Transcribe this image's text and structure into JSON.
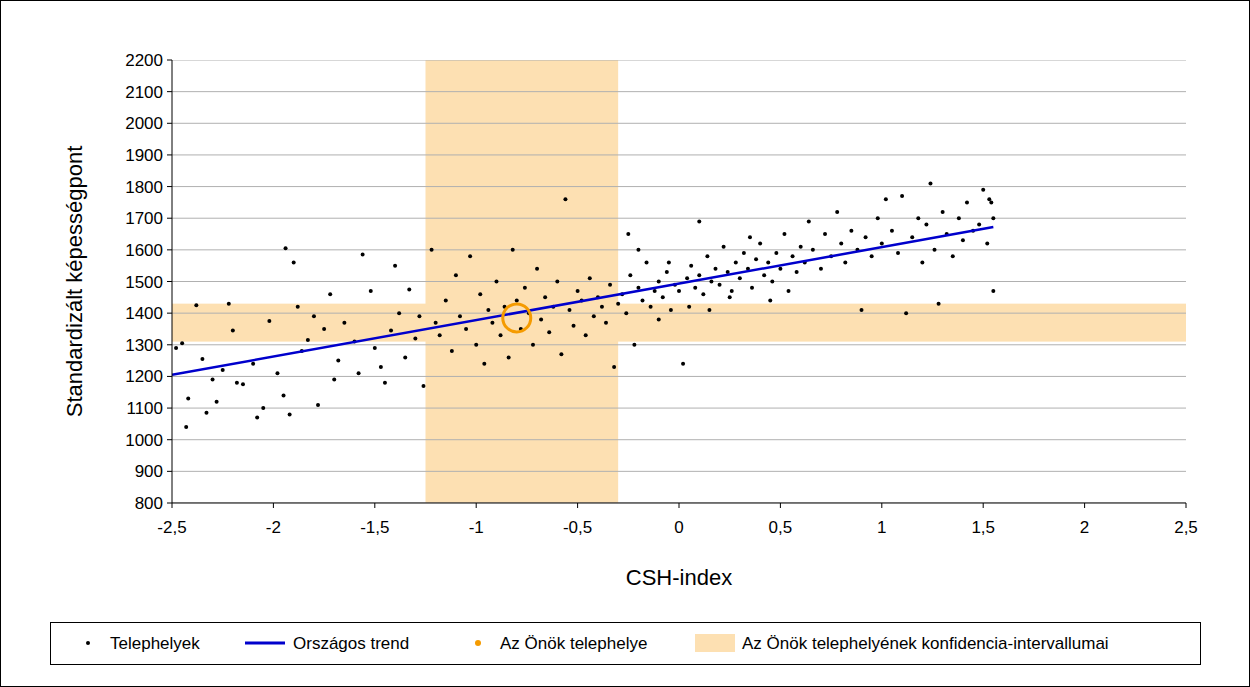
{
  "chart_data": {
    "type": "scatter",
    "x_label": "CSH-index",
    "y_label": "Standardizált képességpont",
    "xlim": [
      -2.5,
      2.5
    ],
    "ylim": [
      800,
      2200
    ],
    "xticks": [
      {
        "value": -2.5,
        "label": "-2,5"
      },
      -2,
      {
        "value": -1.5,
        "label": "-1,5"
      },
      -1,
      {
        "value": -0.5,
        "label": "-0,5"
      },
      0,
      {
        "value": 0.5,
        "label": "0,5"
      },
      1,
      {
        "value": 1.5,
        "label": "1,5"
      },
      2,
      {
        "value": 2.5,
        "label": "2,5"
      }
    ],
    "yticks": [
      800,
      900,
      1000,
      1100,
      1200,
      1300,
      1400,
      1500,
      1600,
      1700,
      1800,
      1900,
      2000,
      2100,
      2200
    ],
    "grid": true,
    "legend": "bottom",
    "series": [
      {
        "name": "Telephelyek",
        "type": "scatter",
        "color": "#000000",
        "marker": "dot",
        "x": [
          -2.48,
          -2.45,
          -2.43,
          -2.42,
          -2.38,
          -2.35,
          -2.33,
          -2.3,
          -2.28,
          -2.25,
          -2.22,
          -2.2,
          -2.18,
          -2.15,
          -2.1,
          -2.08,
          -2.05,
          -2.02,
          -1.98,
          -1.95,
          -1.94,
          -1.92,
          -1.9,
          -1.88,
          -1.86,
          -1.83,
          -1.8,
          -1.78,
          -1.75,
          -1.72,
          -1.7,
          -1.68,
          -1.65,
          -1.6,
          -1.58,
          -1.56,
          -1.52,
          -1.5,
          -1.47,
          -1.45,
          -1.42,
          -1.4,
          -1.38,
          -1.35,
          -1.33,
          -1.3,
          -1.28,
          -1.26,
          -1.22,
          -1.2,
          -1.18,
          -1.15,
          -1.12,
          -1.1,
          -1.08,
          -1.05,
          -1.03,
          -1.0,
          -0.98,
          -0.96,
          -0.94,
          -0.92,
          -0.9,
          -0.88,
          -0.86,
          -0.84,
          -0.82,
          -0.8,
          -0.78,
          -0.76,
          -0.74,
          -0.72,
          -0.7,
          -0.68,
          -0.66,
          -0.64,
          -0.62,
          -0.6,
          -0.58,
          -0.56,
          -0.54,
          -0.52,
          -0.5,
          -0.48,
          -0.46,
          -0.44,
          -0.42,
          -0.4,
          -0.38,
          -0.36,
          -0.34,
          -0.32,
          -0.3,
          -0.28,
          -0.26,
          -0.24,
          -0.22,
          -0.2,
          -0.18,
          -0.16,
          -0.14,
          -0.12,
          -0.1,
          -0.08,
          -0.06,
          -0.04,
          -0.02,
          0.0,
          0.02,
          0.04,
          0.06,
          0.08,
          0.1,
          0.12,
          0.14,
          0.16,
          0.18,
          0.2,
          0.22,
          0.24,
          0.26,
          0.28,
          0.3,
          0.32,
          0.34,
          0.36,
          0.38,
          0.4,
          0.42,
          0.44,
          0.46,
          0.48,
          0.5,
          0.52,
          0.54,
          0.56,
          0.58,
          0.6,
          0.62,
          0.64,
          -0.25,
          -0.2,
          -0.1,
          -0.05,
          0.05,
          0.1,
          0.15,
          0.25,
          0.35,
          0.45,
          0.66,
          0.7,
          0.72,
          0.75,
          0.78,
          0.8,
          0.82,
          0.85,
          0.88,
          0.9,
          0.92,
          0.95,
          0.98,
          1.0,
          1.02,
          1.05,
          1.08,
          1.1,
          1.12,
          1.15,
          1.18,
          1.2,
          1.22,
          1.24,
          1.26,
          1.28,
          1.3,
          1.32,
          1.35,
          1.38,
          1.4,
          1.42,
          1.45,
          1.48,
          1.5,
          1.52,
          1.53,
          1.54,
          1.55,
          1.55
        ],
        "values": [
          1290,
          1305,
          1040,
          1130,
          1425,
          1255,
          1085,
          1190,
          1120,
          1220,
          1430,
          1345,
          1180,
          1175,
          1240,
          1070,
          1100,
          1375,
          1210,
          1140,
          1605,
          1080,
          1560,
          1420,
          1280,
          1315,
          1390,
          1110,
          1350,
          1460,
          1190,
          1250,
          1370,
          1310,
          1210,
          1585,
          1470,
          1290,
          1230,
          1180,
          1345,
          1550,
          1400,
          1260,
          1475,
          1320,
          1390,
          1170,
          1600,
          1370,
          1330,
          1440,
          1280,
          1520,
          1390,
          1350,
          1580,
          1300,
          1460,
          1240,
          1410,
          1370,
          1500,
          1330,
          1420,
          1260,
          1600,
          1440,
          1350,
          1480,
          1400,
          1300,
          1540,
          1380,
          1450,
          1340,
          1420,
          1500,
          1270,
          1760,
          1410,
          1360,
          1470,
          1440,
          1330,
          1510,
          1390,
          1450,
          1420,
          1370,
          1490,
          1230,
          1430,
          1460,
          1400,
          1520,
          1300,
          1480,
          1440,
          1560,
          1420,
          1470,
          1500,
          1450,
          1530,
          1410,
          1490,
          1470,
          1240,
          1510,
          1550,
          1480,
          1520,
          1460,
          1580,
          1500,
          1540,
          1490,
          1610,
          1530,
          1470,
          1560,
          1510,
          1590,
          1540,
          1480,
          1570,
          1620,
          1520,
          1560,
          1500,
          1590,
          1540,
          1650,
          1470,
          1580,
          1530,
          1610,
          1560,
          1690,
          1650,
          1600,
          1380,
          1560,
          1420,
          1690,
          1410,
          1450,
          1640,
          1440,
          1600,
          1540,
          1650,
          1580,
          1720,
          1620,
          1560,
          1660,
          1600,
          1410,
          1640,
          1580,
          1700,
          1620,
          1760,
          1660,
          1590,
          1770,
          1400,
          1640,
          1700,
          1560,
          1680,
          1810,
          1600,
          1430,
          1720,
          1650,
          1580,
          1700,
          1630,
          1750,
          1660,
          1680,
          1790,
          1620,
          1760,
          1750,
          1470,
          1700
        ]
      },
      {
        "name": "Országos trend",
        "type": "line",
        "color": "#0000cc",
        "line_style": "solid",
        "x": [
          -2.5,
          1.55
        ],
        "values": [
          1205,
          1672
        ]
      },
      {
        "name": "Az Önök telephelye",
        "type": "scatter",
        "color": "#f59b00",
        "marker": "ring",
        "x": [
          -0.8
        ],
        "values": [
          1385
        ]
      },
      {
        "name": "Az Önök telephelyének konfidencia-intervallumai",
        "type": "interval",
        "color": "#fde0b2",
        "x_range": [
          -1.25,
          -0.3
        ],
        "y_range": [
          1310,
          1430
        ]
      }
    ]
  }
}
